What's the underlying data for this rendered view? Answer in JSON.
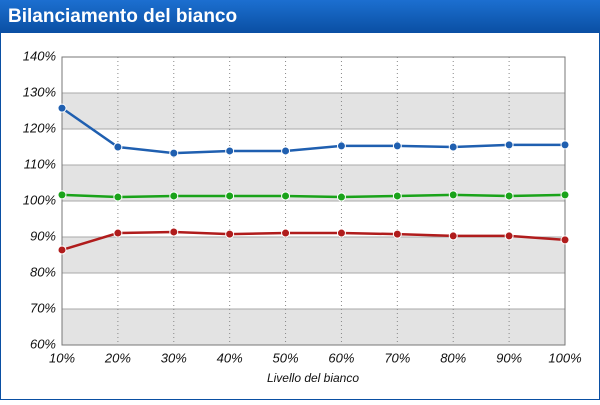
{
  "chart_data": {
    "type": "line",
    "title": "Bilanciamento del bianco",
    "x_label": "Livello del bianco",
    "categories": [
      "10%",
      "20%",
      "30%",
      "40%",
      "50%",
      "60%",
      "70%",
      "80%",
      "90%",
      "100%"
    ],
    "series": [
      {
        "color": "#1f5fb0",
        "values": [
          125.8,
          115,
          113.3,
          113.9,
          113.9,
          115.3,
          115.3,
          115,
          115.6,
          115.6
        ]
      },
      {
        "color": "#1aa31a",
        "values": [
          101.7,
          101.1,
          101.4,
          101.4,
          101.4,
          101.1,
          101.4,
          101.7,
          101.4,
          101.7
        ]
      },
      {
        "color": "#b01c1c",
        "values": [
          86.4,
          91.1,
          91.4,
          90.8,
          91.1,
          91.1,
          90.8,
          90.3,
          90.3,
          89.2
        ]
      }
    ],
    "ylim": [
      60,
      140
    ],
    "yticks": [
      {
        "value": 60,
        "label": "60%"
      },
      {
        "value": 70,
        "label": "70%"
      },
      {
        "value": 80,
        "label": "80%"
      },
      {
        "value": 90,
        "label": "90%"
      },
      {
        "value": 100,
        "label": "100%"
      },
      {
        "value": 110,
        "label": "110%"
      },
      {
        "value": 120,
        "label": "120%"
      },
      {
        "value": 130,
        "label": "130%"
      },
      {
        "value": 140,
        "label": "140%"
      }
    ],
    "grid": true
  }
}
